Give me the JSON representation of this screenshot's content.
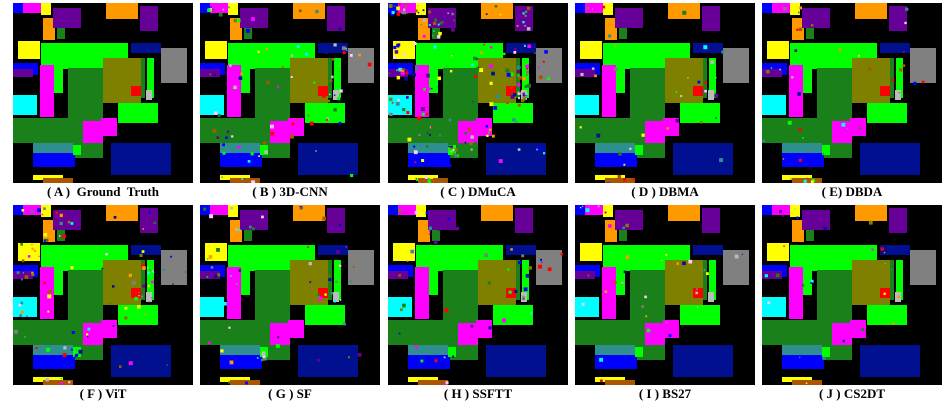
{
  "panels": [
    {
      "caption": "( A )  Ground  Truth",
      "noise": 0.0
    },
    {
      "caption": "( B ) 3D-CNN",
      "noise": 0.1
    },
    {
      "caption": "( C ) DMuCA",
      "noise": 0.24
    },
    {
      "caption": "( D ) DBMA",
      "noise": 0.05
    },
    {
      "caption": "( E) DBDA",
      "noise": 0.05
    },
    {
      "caption": "( F ) ViT",
      "noise": 0.12
    },
    {
      "caption": "( G ) SF",
      "noise": 0.07
    },
    {
      "caption": "( H ) SSFTT",
      "noise": 0.06
    },
    {
      "caption": "( I ) BS27",
      "noise": 0.04
    },
    {
      "caption": "( J ) CS2DT",
      "noise": 0.03
    }
  ],
  "classes": {
    "background": "#000000",
    "corn_notill": "#0000ff",
    "corn_mintill": "#ff9900",
    "corn": "#00ff00",
    "grass_pasture": "#ffff00",
    "grass_trees": "#00ffff",
    "grass_mowed": "#ff00ff",
    "hay": "#ff0000",
    "oats": "#ffccff",
    "soybean_notill": "#808000",
    "soybean_mintill": "#1a801a",
    "soybean_clean": "#660099",
    "wheat": "#808080",
    "woods": "#001090",
    "buildings": "#2f8f8f",
    "stone_steel": "#aa5500",
    "alfalfa": "#bbbbbb"
  }
}
